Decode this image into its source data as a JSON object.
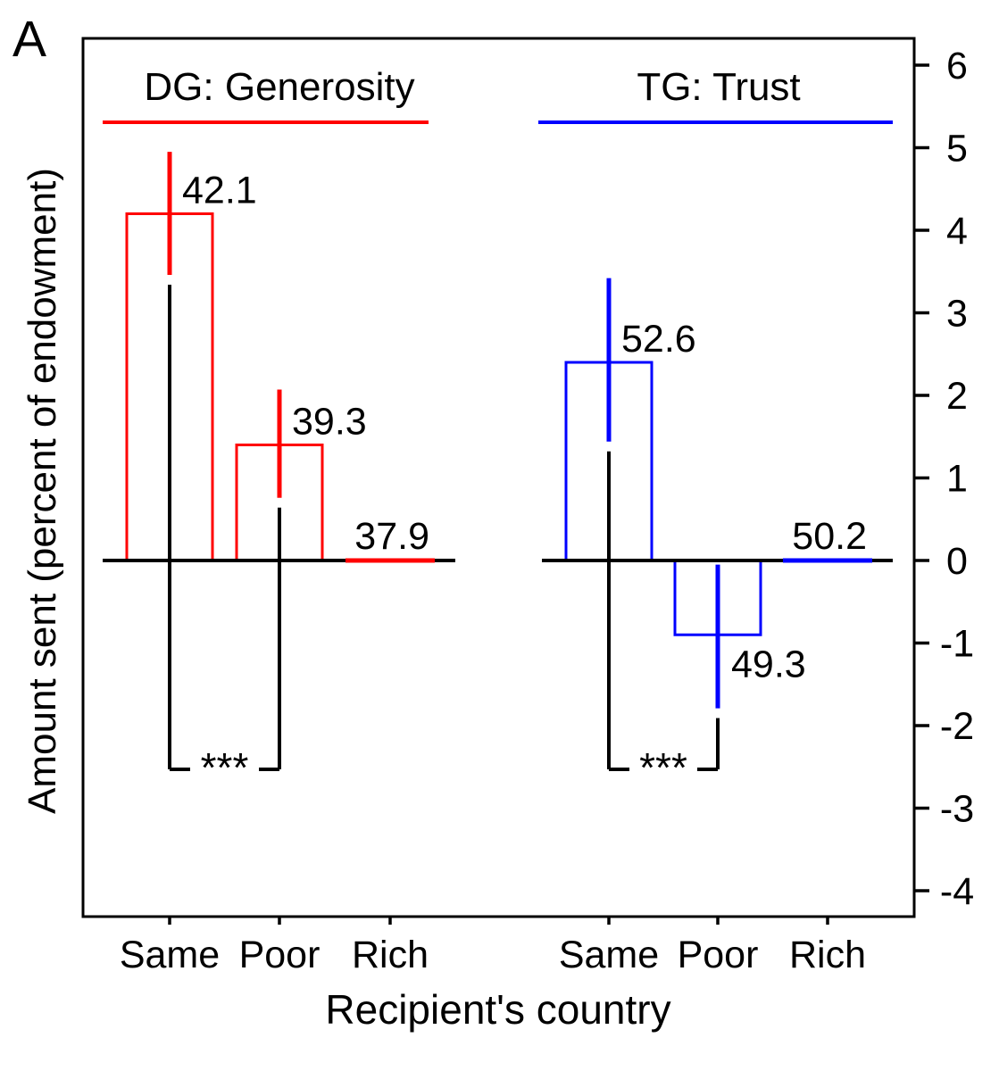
{
  "chart_data": {
    "type": "bar",
    "panel_label": "A",
    "ylabel": "Amount sent (percent of endowment)",
    "xlabel": "Recipient's country",
    "categories": [
      "Same",
      "Poor",
      "Rich"
    ],
    "y_ticks": [
      6,
      5,
      4,
      3,
      2,
      1,
      0,
      -1,
      -2,
      -3,
      -4
    ],
    "ylim": [
      -4.3,
      6.3
    ],
    "grid": false,
    "legend_position": "none",
    "axis_color": "#000000",
    "groups": [
      {
        "name": "DG: Generosity",
        "color": "#ff0000",
        "bars": [
          {
            "category": "Same",
            "value": 4.2,
            "label": "42.1",
            "err_low": 3.46,
            "err_high": 4.95
          },
          {
            "category": "Poor",
            "value": 1.4,
            "label": "39.3",
            "err_low": 0.76,
            "err_high": 2.07
          },
          {
            "category": "Rich",
            "value": 0,
            "label": "37.9",
            "err_low": null,
            "err_high": null
          }
        ],
        "significance": {
          "label": "***",
          "between": [
            "Same",
            "Poor"
          ]
        }
      },
      {
        "name": "TG: Trust",
        "color": "#0000ff",
        "bars": [
          {
            "category": "Same",
            "value": 2.4,
            "label": "52.6",
            "err_low": 1.44,
            "err_high": 3.42
          },
          {
            "category": "Poor",
            "value": -0.9,
            "label": "49.3",
            "err_low": -1.79,
            "err_high": -0.05
          },
          {
            "category": "Rich",
            "value": 0,
            "label": "50.2",
            "err_low": null,
            "err_high": null
          }
        ],
        "significance": {
          "label": "***",
          "between": [
            "Same",
            "Poor"
          ]
        }
      }
    ]
  }
}
